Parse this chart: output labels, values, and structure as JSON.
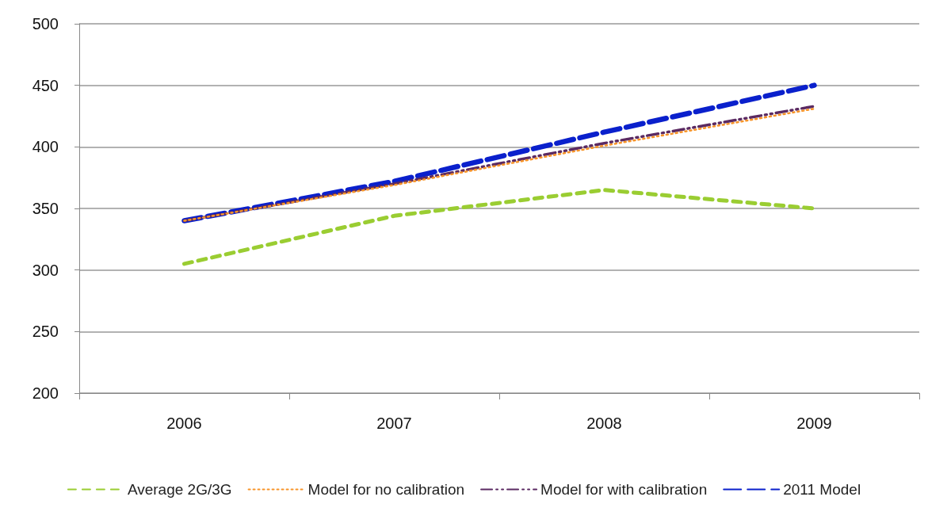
{
  "chart_data": {
    "type": "line",
    "categories": [
      "2006",
      "2007",
      "2008",
      "2009"
    ],
    "series": [
      {
        "name": "Average 2G/3G",
        "color": "#9acd32",
        "line_style": "dashed",
        "values": [
          305,
          344,
          365,
          350
        ]
      },
      {
        "name": "Model for no calibration",
        "color": "#f79428",
        "line_style": "dotted",
        "values": [
          340,
          369,
          401,
          431
        ]
      },
      {
        "name": "Model for with calibration",
        "color": "#5b2a62",
        "line_style": "dashdot",
        "values": [
          340,
          370,
          403,
          433
        ]
      },
      {
        "name": "2011 Model",
        "color": "#0a20cc",
        "line_style": "longdash",
        "values": [
          340,
          372,
          412,
          450
        ]
      }
    ],
    "ylim": [
      200,
      500
    ],
    "yticks": [
      200,
      250,
      300,
      350,
      400,
      450,
      500
    ],
    "grid": "y",
    "legend": "bottom",
    "marker": "none"
  }
}
